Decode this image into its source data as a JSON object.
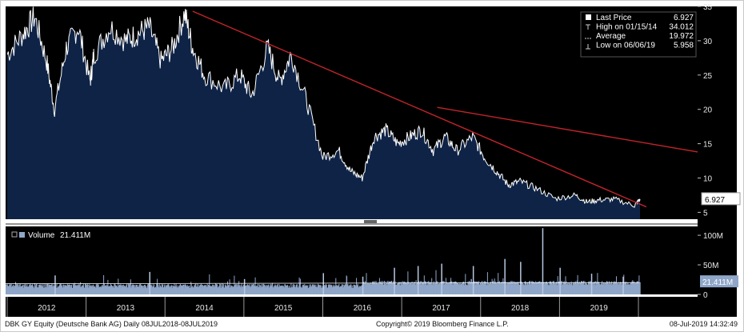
{
  "chart_data": [
    {
      "type": "area",
      "panel": "price",
      "ylim": [
        4,
        35
      ],
      "y_ticks": [
        "5",
        "10",
        "15",
        "20",
        "25",
        "30",
        "35"
      ],
      "y_tick_values": [
        5,
        10,
        15,
        20,
        25,
        30,
        35
      ],
      "x": [
        2011.5,
        2011.7,
        2011.85,
        2012.0,
        2012.1,
        2012.25,
        2012.4,
        2012.55,
        2012.6,
        2012.8,
        2013.0,
        2013.15,
        2013.3,
        2013.45,
        2013.6,
        2013.75,
        2013.85,
        2014.0,
        2014.25,
        2014.45,
        2014.6,
        2014.8,
        2014.95,
        2015.1,
        2015.3,
        2015.5,
        2015.7,
        2015.85,
        2016.0,
        2016.15,
        2016.3,
        2016.45,
        2016.6,
        2016.75,
        2016.9,
        2017.05,
        2017.2,
        2017.4,
        2017.55,
        2017.7,
        2017.85,
        2018.0,
        2018.2,
        2018.45,
        2018.7,
        2018.85,
        2019.0,
        2019.2,
        2019.45,
        2019.52
      ],
      "y": [
        28,
        31,
        33.5,
        27,
        20,
        29,
        32,
        24,
        28,
        32,
        30,
        31,
        32,
        27,
        29,
        34,
        29,
        25,
        23,
        25,
        22,
        29,
        24,
        28,
        21,
        13,
        14,
        11,
        10,
        16,
        17,
        15,
        16,
        17,
        14,
        16,
        14,
        16,
        13,
        11,
        9,
        9.5,
        8.5,
        7,
        7.5,
        6.5,
        6.8,
        6.9,
        6,
        6.927
      ],
      "trendline": {
        "x": [
          2013.85,
          2019.6
        ],
        "y": [
          34.3,
          5.8
        ]
      },
      "trendline_upper": {
        "x": [
          2016.95,
          2020.25
        ],
        "y": [
          20.3,
          13.8
        ]
      },
      "last_price_label": "6.927",
      "last_price_value": 6.927,
      "legend": [
        {
          "label": "Last Price",
          "value": "6.927",
          "marker": "square"
        },
        {
          "label": "High on 01/15/14",
          "value": "34.012",
          "marker": "tee"
        },
        {
          "label": "Average",
          "value": "19.972",
          "marker": "dash-dot"
        },
        {
          "label": "Low on 06/06/19",
          "value": "5.958",
          "marker": "tee-inverted"
        }
      ],
      "colors": {
        "area": "#0e2346",
        "line": "#ffffff",
        "trend": "#c0242c"
      }
    },
    {
      "type": "bar",
      "panel": "volume",
      "ylim": [
        0,
        115
      ],
      "y_ticks": [
        "100M",
        "50M",
        "0"
      ],
      "y_tick_values": [
        100,
        50,
        0
      ],
      "legend": [
        {
          "label": "Volume",
          "value": "21.411M"
        }
      ],
      "last_value_label": "21.411M",
      "last_value": 21.411,
      "baseline": 14,
      "spikes": {
        "x": [
          2012.1,
          2013.3,
          2014.5,
          2015.5,
          2016.0,
          2016.4,
          2016.7,
          2017.0,
          2017.4,
          2017.8,
          2018.0,
          2018.28,
          2018.5,
          2018.9,
          2019.3
        ],
        "y": [
          32,
          38,
          26,
          36,
          30,
          45,
          48,
          52,
          48,
          60,
          55,
          112,
          45,
          35,
          30
        ]
      },
      "colors": {
        "bar": "#8fa6c8",
        "line": "#ffffff"
      }
    }
  ],
  "x_axis": {
    "range": [
      2011.48,
      2020.25
    ],
    "years": [
      "2012",
      "2013",
      "2014",
      "2015",
      "2016",
      "2017",
      "2018",
      "2019"
    ],
    "year_positions": [
      2012.0,
      2013.0,
      2014.0,
      2015.0,
      2016.0,
      2017.0,
      2018.0,
      2019.0
    ]
  },
  "footer": {
    "left": "DBK GY Equity (Deutsche Bank AG)  Daily 08JUL2018-08JUL2019",
    "center": "Copyright© 2019 Bloomberg Finance L.P.",
    "right": "08-Jul-2019 14:32:49"
  }
}
